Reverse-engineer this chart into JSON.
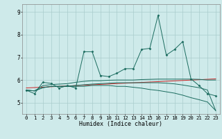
{
  "title": "",
  "xlabel": "Humidex (Indice chaleur)",
  "xlim": [
    -0.5,
    23.5
  ],
  "ylim": [
    4.5,
    9.35
  ],
  "yticks": [
    5,
    6,
    7,
    8,
    9
  ],
  "xticks": [
    0,
    1,
    2,
    3,
    4,
    5,
    6,
    7,
    8,
    9,
    10,
    11,
    12,
    13,
    14,
    15,
    16,
    17,
    18,
    19,
    20,
    21,
    22,
    23
  ],
  "bg_color": "#ceeaea",
  "grid_color": "#aacccc",
  "line_color": "#1a6b5e",
  "line1_y": [
    5.55,
    5.4,
    5.9,
    5.85,
    5.65,
    5.75,
    5.65,
    7.25,
    7.25,
    6.2,
    6.15,
    6.3,
    6.5,
    6.5,
    7.35,
    7.4,
    8.85,
    7.1,
    7.35,
    7.7,
    6.05,
    5.75,
    5.4,
    5.3
  ],
  "line2_y": [
    5.55,
    5.52,
    5.75,
    5.8,
    5.82,
    5.84,
    5.9,
    5.94,
    5.97,
    5.97,
    5.99,
    6.0,
    6.0,
    6.0,
    6.02,
    6.03,
    6.04,
    6.04,
    6.04,
    6.04,
    6.04,
    6.03,
    6.0,
    6.0
  ],
  "line3_y": [
    5.55,
    5.52,
    5.66,
    5.72,
    5.72,
    5.72,
    5.72,
    5.72,
    5.76,
    5.76,
    5.76,
    5.72,
    5.72,
    5.68,
    5.64,
    5.58,
    5.54,
    5.48,
    5.42,
    5.33,
    5.22,
    5.13,
    5.03,
    4.65
  ],
  "line4_y": [
    5.55,
    5.52,
    5.66,
    5.72,
    5.72,
    5.72,
    5.76,
    5.79,
    5.82,
    5.84,
    5.86,
    5.88,
    5.88,
    5.88,
    5.88,
    5.88,
    5.88,
    5.86,
    5.83,
    5.78,
    5.72,
    5.66,
    5.56,
    4.65
  ],
  "red_line_x": [
    0,
    23
  ],
  "red_line_y": [
    5.65,
    6.05
  ],
  "red_color": "#cc2222",
  "xlabel_fontsize": 6.0,
  "tick_fontsize": 5.2
}
